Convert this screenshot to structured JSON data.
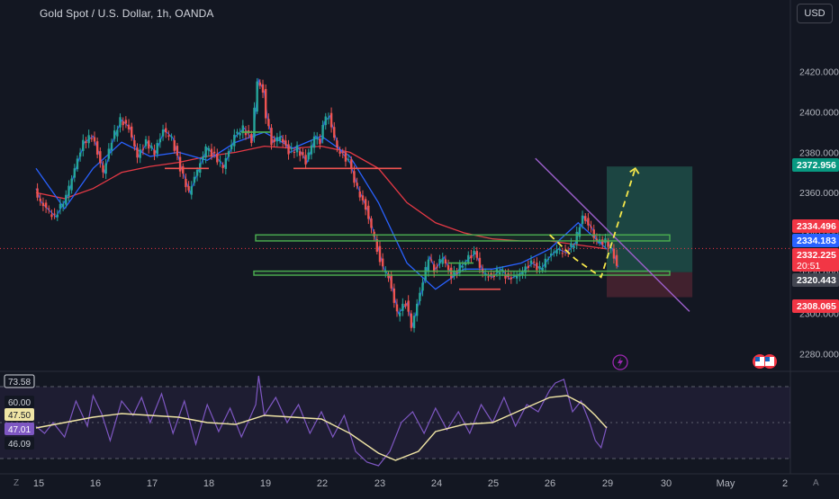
{
  "chart_title": "Gold Spot / U.S. Dollar, 1h, OANDA",
  "currency_button": "USD",
  "corner_left": "Z",
  "corner_right": "A",
  "colors": {
    "background": "#131722",
    "candle_up": "#26a69a",
    "candle_down": "#ef5350",
    "zigzag": "#2962ff",
    "ma_slow": "#e53945",
    "ma_fast": "#2962ff",
    "support_zone_stroke": "#4caf50",
    "trend_line": "#9c5fcb",
    "projection": "#f5e74b",
    "rsi": "#7e57c2",
    "rsi_ma": "#f0e5a5",
    "target_box": "#1f4d48",
    "stop_box": "#4a2330"
  },
  "icons": [
    "lightning-icon",
    "flag-icon"
  ],
  "chart_data": [
    {
      "type": "line",
      "title": "Gold Spot / U.S. Dollar, 1h, OANDA",
      "xlabel": "",
      "ylabel": "",
      "x_ticks": [
        "15",
        "16",
        "17",
        "18",
        "19",
        "22",
        "23",
        "24",
        "25",
        "26",
        "29",
        "30",
        "May",
        "2"
      ],
      "y_ticks": [
        "2280.000",
        "2300.000",
        "2320.000",
        "2340.000",
        "2360.000",
        "2380.000",
        "2400.000",
        "2420.000"
      ],
      "ylim": [
        2273.5,
        2442.2
      ],
      "grid": false,
      "series": [
        {
          "name": "price",
          "x": [
            0.0,
            0.1,
            0.2,
            0.35,
            0.55,
            0.7,
            0.85,
            1.0,
            1.1,
            1.2,
            1.35,
            1.5,
            1.65,
            1.8,
            1.95,
            2.1,
            2.25,
            2.4,
            2.55,
            2.7,
            2.9,
            3.0,
            3.15,
            3.3,
            3.5,
            3.65,
            3.8,
            3.9,
            4.0,
            4.05,
            4.15,
            4.3,
            4.45,
            4.6,
            4.75,
            4.9,
            5.0,
            5.05,
            5.15,
            5.3,
            5.5,
            5.65,
            5.8,
            5.9,
            6.0,
            6.1,
            6.2,
            6.35,
            6.5,
            6.6,
            6.75,
            6.9,
            7.0,
            7.15,
            7.3,
            7.5,
            7.7,
            7.85,
            8.0,
            8.15,
            8.3,
            8.5,
            8.7,
            8.85,
            9.0,
            9.15,
            9.3,
            9.45,
            9.6,
            9.75,
            9.85,
            10.0,
            10.1,
            10.2
          ],
          "values": [
            2362,
            2355,
            2352,
            2348,
            2358,
            2372,
            2385,
            2388,
            2380,
            2370,
            2386,
            2396,
            2392,
            2378,
            2385,
            2380,
            2391,
            2387,
            2372,
            2360,
            2375,
            2382,
            2378,
            2373,
            2388,
            2392,
            2386,
            2416,
            2410,
            2398,
            2385,
            2388,
            2380,
            2382,
            2375,
            2388,
            2385,
            2395,
            2398,
            2382,
            2375,
            2362,
            2352,
            2342,
            2332,
            2322,
            2318,
            2300,
            2305,
            2294,
            2310,
            2328,
            2322,
            2328,
            2318,
            2325,
            2330,
            2320,
            2318,
            2322,
            2317,
            2320,
            2325,
            2322,
            2328,
            2332,
            2330,
            2335,
            2348,
            2342,
            2335,
            2336,
            2332,
            2323
          ]
        },
        {
          "name": "",
          "x": [
            0.0,
            0.5,
            1.0,
            1.5,
            2.0,
            2.5,
            3.0,
            3.5,
            4.0,
            4.5,
            5.0,
            5.5,
            6.0,
            6.5,
            7.0,
            7.5,
            8.0,
            8.5,
            9.0,
            9.5,
            10.0
          ],
          "values": [
            2360,
            2357,
            2362,
            2370,
            2373,
            2375,
            2378,
            2380,
            2383,
            2382,
            2383,
            2380,
            2372,
            2355,
            2345,
            2340,
            2337,
            2336,
            2336,
            2334,
            2332
          ]
        },
        {
          "name": "",
          "x": [
            0.0,
            0.5,
            1.0,
            1.5,
            2.0,
            2.5,
            3.0,
            3.5,
            4.0,
            4.5,
            5.0,
            5.5,
            6.0,
            6.5,
            7.0,
            7.5,
            8.0,
            8.5,
            9.0,
            9.5,
            10.0
          ],
          "values": [
            2372,
            2352,
            2372,
            2385,
            2378,
            2380,
            2376,
            2385,
            2390,
            2382,
            2388,
            2378,
            2355,
            2325,
            2312,
            2322,
            2322,
            2325,
            2332,
            2345,
            2332
          ]
        }
      ],
      "annotations": [
        {
          "label": "2372.956",
          "y": 2372.956,
          "color": "#089981"
        },
        {
          "label": "2334.496",
          "y": 2334.496,
          "color": "#f23645"
        },
        {
          "label": "2334.183",
          "y": 2334.183,
          "color": "#2962ff"
        },
        {
          "label": "2332.225",
          "sublabel": "20:51",
          "y": 2332.225,
          "color": "#f23645"
        },
        {
          "label": "2320.443",
          "y": 2320.443,
          "color": "#434651"
        },
        {
          "label": "2308.065",
          "y": 2308.065,
          "color": "#f23645"
        }
      ],
      "zones": [
        {
          "name": "upper-support-zone",
          "y_low": 2336,
          "y_high": 2339
        },
        {
          "name": "lower-support-zone",
          "y_low": 2319,
          "y_high": 2321
        }
      ],
      "trend_line": {
        "x": [
          8.75,
          11.45
        ],
        "values": [
          2377,
          2301
        ]
      },
      "projection_path": {
        "x": [
          9.0,
          9.45,
          9.9,
          10.5
        ],
        "values": [
          2339,
          2327,
          2318,
          2372
        ]
      },
      "position_target": {
        "x": [
          10.0,
          11.5
        ],
        "values": [
          2320.443,
          2372.956
        ]
      },
      "position_stop": {
        "x": [
          10.0,
          11.5
        ],
        "values": [
          2308.065,
          2320.443
        ]
      },
      "last_price": 2332.225
    },
    {
      "type": "line",
      "xlabel": "",
      "ylabel": "",
      "x_ticks": [
        "15",
        "16",
        "17",
        "18",
        "19",
        "22",
        "23",
        "24",
        "25",
        "26",
        "29",
        "30",
        "May",
        "2"
      ],
      "y_ticks": [
        "73.58",
        "60.00",
        "47.50",
        "47.01",
        "46.09"
      ],
      "ylim": [
        24,
        76
      ],
      "grid": false,
      "series": [
        {
          "name": "",
          "x": [
            0.0,
            0.15,
            0.3,
            0.5,
            0.7,
            0.9,
            1.0,
            1.15,
            1.3,
            1.5,
            1.7,
            1.85,
            2.0,
            2.2,
            2.4,
            2.6,
            2.8,
            3.0,
            3.2,
            3.4,
            3.6,
            3.85,
            3.9,
            4.0,
            4.2,
            4.4,
            4.6,
            4.8,
            5.0,
            5.2,
            5.4,
            5.6,
            5.8,
            6.0,
            6.2,
            6.4,
            6.6,
            6.8,
            7.0,
            7.2,
            7.4,
            7.6,
            7.8,
            8.0,
            8.2,
            8.4,
            8.6,
            8.8,
            9.0,
            9.1,
            9.25,
            9.4,
            9.55,
            9.7,
            9.8,
            9.9,
            10.0
          ],
          "values": [
            48,
            44,
            50,
            42,
            62,
            48,
            65,
            55,
            40,
            62,
            54,
            64,
            50,
            66,
            44,
            62,
            38,
            60,
            45,
            58,
            42,
            60,
            76,
            54,
            64,
            50,
            60,
            44,
            56,
            42,
            54,
            34,
            28,
            26,
            34,
            50,
            56,
            44,
            58,
            46,
            56,
            44,
            60,
            50,
            64,
            48,
            60,
            56,
            68,
            72,
            74,
            56,
            62,
            50,
            40,
            36,
            48
          ]
        },
        {
          "name": "",
          "x": [
            0.0,
            0.5,
            1.0,
            1.5,
            2.0,
            2.5,
            3.0,
            3.5,
            4.0,
            4.5,
            5.0,
            5.5,
            6.0,
            6.3,
            6.7,
            7.0,
            7.5,
            8.0,
            8.5,
            9.0,
            9.3,
            9.6,
            9.8,
            10.0
          ],
          "values": [
            47,
            50,
            53,
            55,
            54,
            53,
            50,
            49,
            54,
            53,
            52,
            44,
            33,
            29,
            34,
            45,
            49,
            50,
            57,
            64,
            65,
            60,
            54,
            47
          ]
        }
      ],
      "levels": [
        70,
        50,
        30
      ]
    }
  ]
}
